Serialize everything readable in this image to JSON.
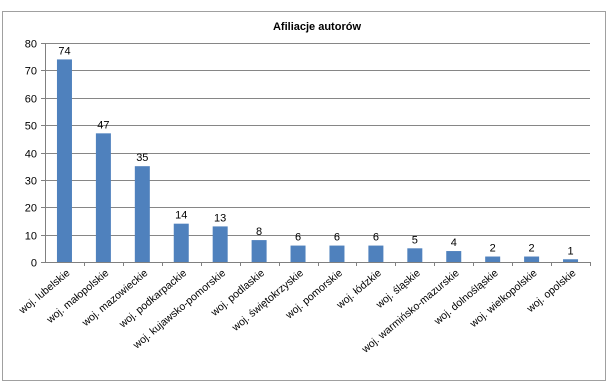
{
  "chart_data": {
    "type": "bar",
    "title": "Afiliacje autorów",
    "xlabel": "",
    "ylabel": "",
    "ylim": [
      0,
      80
    ],
    "yticks": [
      0,
      10,
      20,
      30,
      40,
      50,
      60,
      70,
      80
    ],
    "grid": true,
    "legend": "none",
    "bar_color": "#4f81bd",
    "categories": [
      "woj. lubelskie",
      "woj. małopolskie",
      "woj. mazowieckie",
      "woj. podkarpackie",
      "woj. kujawsko-pomorskie",
      "woj. podlaskie",
      "woj. świętokrzyskie",
      "woj. pomorskie",
      "woj. łódzkie",
      "woj. śląskie",
      "woj. warmińsko-mazurskie",
      "woj. dolnośląskie",
      "woj. wielkopolskie",
      "woj. opolskie"
    ],
    "values": [
      74,
      47,
      35,
      14,
      13,
      8,
      6,
      6,
      6,
      5,
      4,
      2,
      2,
      1
    ]
  }
}
